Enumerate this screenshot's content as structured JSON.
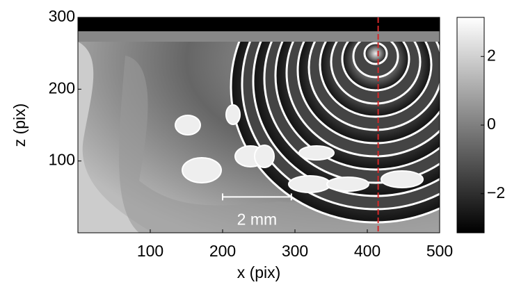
{
  "chart_data": {
    "type": "image",
    "xlabel": "x (pix)",
    "ylabel": "z (pix)",
    "xlim": [
      0,
      500
    ],
    "ylim": [
      0,
      300
    ],
    "xticks": [
      100,
      200,
      300,
      400,
      500
    ],
    "yticks": [
      100,
      200,
      300
    ],
    "colorbar": {
      "clim": [
        -3.14,
        3.14
      ],
      "ticks": [
        {
          "value": -2,
          "label": "−2"
        },
        0,
        2
      ]
    },
    "marker_x": 415,
    "marker_color": "#d62728",
    "scale_bar": {
      "label": "2 mm",
      "x": [
        200,
        295
      ],
      "y": 50
    }
  }
}
